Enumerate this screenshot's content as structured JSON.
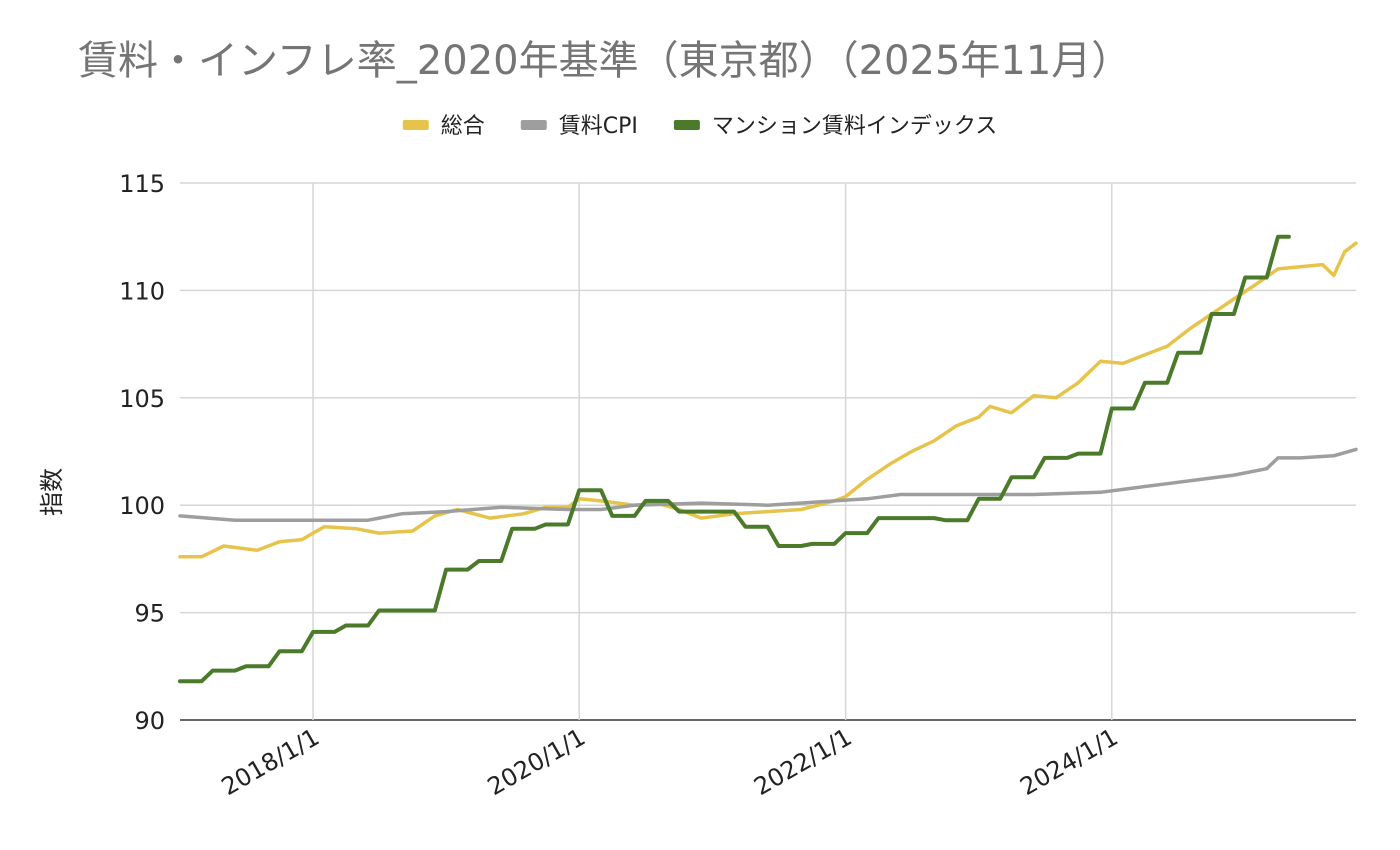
{
  "chart_data": {
    "type": "line",
    "title": "賃料・インフレ率_2020年基準（東京都）（2025年11月）",
    "ylabel": "指数",
    "xlabel": "",
    "ylim": [
      90,
      115
    ],
    "yticks": [
      90,
      95,
      100,
      105,
      110,
      115
    ],
    "xlim": [
      "2017/1/1",
      "2025/11/1"
    ],
    "xticks": [
      {
        "date": "2018/1/1",
        "label": "2018/1/1"
      },
      {
        "date": "2020/1/1",
        "label": "2020/1/1"
      },
      {
        "date": "2022/1/1",
        "label": "2022/1/1"
      },
      {
        "date": "2024/1/1",
        "label": "2024/1/1"
      }
    ],
    "grid": true,
    "legend_position": "top-center",
    "series": [
      {
        "name": "総合",
        "color": "#E6C44C",
        "points": [
          [
            "2017/1/1",
            97.6
          ],
          [
            "2017/3/1",
            97.6
          ],
          [
            "2017/5/1",
            98.1
          ],
          [
            "2017/8/1",
            97.9
          ],
          [
            "2017/10/1",
            98.3
          ],
          [
            "2017/12/1",
            98.4
          ],
          [
            "2018/2/1",
            99.0
          ],
          [
            "2018/5/1",
            98.9
          ],
          [
            "2018/7/1",
            98.7
          ],
          [
            "2018/10/1",
            98.8
          ],
          [
            "2018/12/1",
            99.5
          ],
          [
            "2019/2/1",
            99.8
          ],
          [
            "2019/5/1",
            99.4
          ],
          [
            "2019/8/1",
            99.6
          ],
          [
            "2019/10/1",
            99.9
          ],
          [
            "2019/12/1",
            99.9
          ],
          [
            "2020/1/1",
            100.3
          ],
          [
            "2020/3/1",
            100.2
          ],
          [
            "2020/6/1",
            100.0
          ],
          [
            "2020/8/1",
            100.1
          ],
          [
            "2020/10/1",
            99.8
          ],
          [
            "2020/12/1",
            99.4
          ],
          [
            "2021/3/1",
            99.6
          ],
          [
            "2021/6/1",
            99.7
          ],
          [
            "2021/9/1",
            99.8
          ],
          [
            "2021/12/1",
            100.2
          ],
          [
            "2022/1/1",
            100.4
          ],
          [
            "2022/3/1",
            101.2
          ],
          [
            "2022/5/1",
            101.9
          ],
          [
            "2022/7/1",
            102.5
          ],
          [
            "2022/9/1",
            103.0
          ],
          [
            "2022/11/1",
            103.7
          ],
          [
            "2023/1/1",
            104.1
          ],
          [
            "2023/2/1",
            104.6
          ],
          [
            "2023/4/1",
            104.3
          ],
          [
            "2023/6/1",
            105.1
          ],
          [
            "2023/8/1",
            105.0
          ],
          [
            "2023/10/1",
            105.7
          ],
          [
            "2023/12/1",
            106.7
          ],
          [
            "2024/2/1",
            106.6
          ],
          [
            "2024/4/1",
            107.0
          ],
          [
            "2024/6/1",
            107.4
          ],
          [
            "2024/8/1",
            108.2
          ],
          [
            "2024/10/1",
            108.9
          ],
          [
            "2024/12/1",
            109.6
          ],
          [
            "2025/2/1",
            110.3
          ],
          [
            "2025/4/1",
            111.0
          ],
          [
            "2025/6/1",
            111.1
          ],
          [
            "2025/8/1",
            111.2
          ],
          [
            "2025/9/1",
            110.7
          ],
          [
            "2025/10/1",
            111.8
          ],
          [
            "2025/11/1",
            112.2
          ]
        ]
      },
      {
        "name": "賃料CPI",
        "color": "#9E9E9E",
        "points": [
          [
            "2017/1/1",
            99.5
          ],
          [
            "2017/6/1",
            99.3
          ],
          [
            "2018/1/1",
            99.3
          ],
          [
            "2018/6/1",
            99.3
          ],
          [
            "2018/9/1",
            99.6
          ],
          [
            "2019/1/1",
            99.7
          ],
          [
            "2019/6/1",
            99.9
          ],
          [
            "2019/12/1",
            99.8
          ],
          [
            "2020/3/1",
            99.8
          ],
          [
            "2020/6/1",
            100.0
          ],
          [
            "2020/12/1",
            100.1
          ],
          [
            "2021/6/1",
            100.0
          ],
          [
            "2021/12/1",
            100.2
          ],
          [
            "2022/3/1",
            100.3
          ],
          [
            "2022/6/1",
            100.5
          ],
          [
            "2023/1/1",
            100.5
          ],
          [
            "2023/6/1",
            100.5
          ],
          [
            "2023/12/1",
            100.6
          ],
          [
            "2024/3/1",
            100.8
          ],
          [
            "2024/6/1",
            101.0
          ],
          [
            "2024/9/1",
            101.2
          ],
          [
            "2024/12/1",
            101.4
          ],
          [
            "2025/3/1",
            101.7
          ],
          [
            "2025/4/1",
            102.2
          ],
          [
            "2025/6/1",
            102.2
          ],
          [
            "2025/9/1",
            102.3
          ],
          [
            "2025/11/1",
            102.6
          ]
        ]
      },
      {
        "name": "マンション賃料インデックス",
        "color": "#4A7A2A",
        "points": [
          [
            "2017/1/1",
            91.8
          ],
          [
            "2017/3/1",
            91.8
          ],
          [
            "2017/4/1",
            92.3
          ],
          [
            "2017/6/1",
            92.3
          ],
          [
            "2017/7/1",
            92.5
          ],
          [
            "2017/9/1",
            92.5
          ],
          [
            "2017/10/1",
            93.2
          ],
          [
            "2017/12/1",
            93.2
          ],
          [
            "2018/1/1",
            94.1
          ],
          [
            "2018/3/1",
            94.1
          ],
          [
            "2018/4/1",
            94.4
          ],
          [
            "2018/6/1",
            94.4
          ],
          [
            "2018/7/1",
            95.1
          ],
          [
            "2018/12/1",
            95.1
          ],
          [
            "2019/1/1",
            97.0
          ],
          [
            "2019/3/1",
            97.0
          ],
          [
            "2019/4/1",
            97.4
          ],
          [
            "2019/6/1",
            97.4
          ],
          [
            "2019/7/1",
            98.9
          ],
          [
            "2019/9/1",
            98.9
          ],
          [
            "2019/10/1",
            99.1
          ],
          [
            "2019/12/1",
            99.1
          ],
          [
            "2020/1/1",
            100.7
          ],
          [
            "2020/3/1",
            100.7
          ],
          [
            "2020/4/1",
            99.5
          ],
          [
            "2020/6/1",
            99.5
          ],
          [
            "2020/7/1",
            100.2
          ],
          [
            "2020/9/1",
            100.2
          ],
          [
            "2020/10/1",
            99.7
          ],
          [
            "2020/12/1",
            99.7
          ],
          [
            "2021/1/1",
            99.7
          ],
          [
            "2021/3/1",
            99.7
          ],
          [
            "2021/4/1",
            99.0
          ],
          [
            "2021/6/1",
            99.0
          ],
          [
            "2021/7/1",
            98.1
          ],
          [
            "2021/9/1",
            98.1
          ],
          [
            "2021/10/1",
            98.2
          ],
          [
            "2021/12/1",
            98.2
          ],
          [
            "2022/1/1",
            98.7
          ],
          [
            "2022/3/1",
            98.7
          ],
          [
            "2022/4/1",
            99.4
          ],
          [
            "2022/9/1",
            99.4
          ],
          [
            "2022/10/1",
            99.3
          ],
          [
            "2022/12/1",
            99.3
          ],
          [
            "2023/1/1",
            100.3
          ],
          [
            "2023/3/1",
            100.3
          ],
          [
            "2023/4/1",
            101.3
          ],
          [
            "2023/6/1",
            101.3
          ],
          [
            "2023/7/1",
            102.2
          ],
          [
            "2023/9/1",
            102.2
          ],
          [
            "2023/10/1",
            102.4
          ],
          [
            "2023/12/1",
            102.4
          ],
          [
            "2024/1/1",
            104.5
          ],
          [
            "2024/3/1",
            104.5
          ],
          [
            "2024/4/1",
            105.7
          ],
          [
            "2024/6/1",
            105.7
          ],
          [
            "2024/7/1",
            107.1
          ],
          [
            "2024/9/1",
            107.1
          ],
          [
            "2024/10/1",
            108.9
          ],
          [
            "2024/12/1",
            108.9
          ],
          [
            "2025/1/1",
            110.6
          ],
          [
            "2025/3/1",
            110.6
          ],
          [
            "2025/4/1",
            112.5
          ],
          [
            "2025/5/1",
            112.5
          ]
        ]
      }
    ]
  }
}
